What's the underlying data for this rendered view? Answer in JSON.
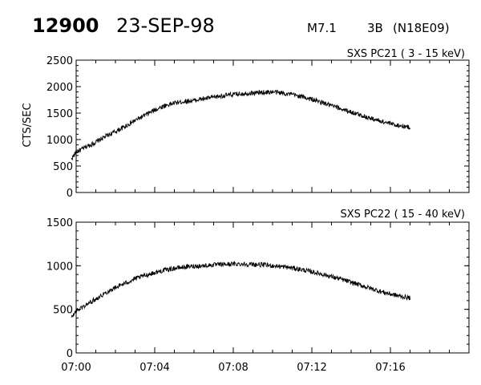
{
  "header": {
    "event_id": "12900",
    "date": "23-SEP-98",
    "flare_class": "M7.1",
    "optical_class": "3B",
    "location": "(N18E09)"
  },
  "chart_data": [
    {
      "type": "line",
      "title": "SXS PC21  (  3 - 15 keV)",
      "ylabel": "CTS/SEC",
      "xlabel": "",
      "xlim": [
        "07:00",
        "07:20"
      ],
      "ylim": [
        0,
        2500
      ],
      "yticks": [
        0,
        500,
        1000,
        1500,
        2000,
        2500
      ],
      "grid": false,
      "series": [
        {
          "time": [
            "06:59:45",
            "07:00",
            "07:00:30",
            "07:01",
            "07:01:30",
            "07:02",
            "07:02:30",
            "07:03",
            "07:03:30",
            "07:04",
            "07:04:30",
            "07:05",
            "07:05:30",
            "07:06",
            "07:06:30",
            "07:07",
            "07:07:30",
            "07:08",
            "07:08:30",
            "07:09",
            "07:09:30",
            "07:10",
            "07:10:30",
            "07:11",
            "07:11:30",
            "07:12",
            "07:12:30",
            "07:13",
            "07:13:30",
            "07:14",
            "07:14:30",
            "07:15",
            "07:15:30",
            "07:16",
            "07:16:30",
            "07:17"
          ],
          "values": [
            630,
            760,
            860,
            950,
            1060,
            1150,
            1250,
            1360,
            1460,
            1560,
            1640,
            1690,
            1720,
            1740,
            1770,
            1800,
            1830,
            1850,
            1870,
            1880,
            1890,
            1900,
            1880,
            1850,
            1810,
            1760,
            1700,
            1640,
            1580,
            1520,
            1460,
            1400,
            1350,
            1300,
            1260,
            1230
          ],
          "color": "#000000"
        }
      ]
    },
    {
      "type": "line",
      "title": "SXS PC22  ( 15 - 40 keV)",
      "ylabel": "",
      "xlabel": "",
      "xlim": [
        "07:00",
        "07:20"
      ],
      "ylim": [
        0,
        1500
      ],
      "yticks": [
        0,
        500,
        1000,
        1500
      ],
      "xticks": [
        "07:00",
        "07:04",
        "07:08",
        "07:12",
        "07:16"
      ],
      "grid": false,
      "series": [
        {
          "time": [
            "06:59:45",
            "07:00",
            "07:00:30",
            "07:01",
            "07:01:30",
            "07:02",
            "07:02:30",
            "07:03",
            "07:03:30",
            "07:04",
            "07:04:30",
            "07:05",
            "07:05:30",
            "07:06",
            "07:06:30",
            "07:07",
            "07:07:30",
            "07:08",
            "07:08:30",
            "07:09",
            "07:09:30",
            "07:10",
            "07:10:30",
            "07:11",
            "07:11:30",
            "07:12",
            "07:12:30",
            "07:13",
            "07:13:30",
            "07:14",
            "07:14:30",
            "07:15",
            "07:15:30",
            "07:16",
            "07:16:30",
            "07:17"
          ],
          "values": [
            400,
            480,
            550,
            620,
            690,
            750,
            800,
            850,
            890,
            920,
            950,
            970,
            985,
            995,
            1000,
            1010,
            1015,
            1020,
            1020,
            1015,
            1010,
            1000,
            990,
            975,
            955,
            930,
            905,
            875,
            845,
            810,
            775,
            740,
            705,
            675,
            650,
            630
          ],
          "color": "#000000"
        }
      ]
    }
  ]
}
